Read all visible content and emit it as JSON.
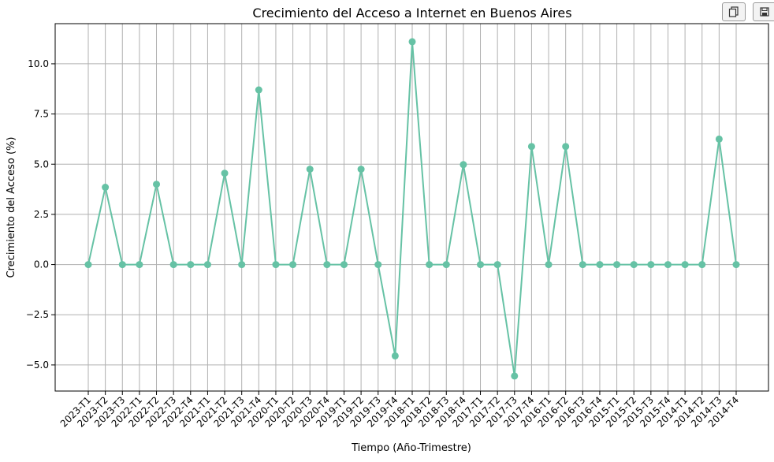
{
  "toolbar": {
    "copy_icon": "copy-icon",
    "save_icon": "save-icon"
  },
  "chart_data": {
    "type": "line",
    "title": "Crecimiento del Acceso a Internet en Buenos Aires",
    "xlabel": "Tiempo (Año-Trimestre)",
    "ylabel": "Crecimiento del Acceso (%)",
    "ylim": [
      -6.3,
      12.0
    ],
    "yticks": [
      -5.0,
      -2.5,
      0.0,
      2.5,
      5.0,
      7.5,
      10.0
    ],
    "ytick_labels": [
      "−5.0",
      "−2.5",
      "0.0",
      "2.5",
      "5.0",
      "7.5",
      "10.0"
    ],
    "grid": true,
    "color": "#66c2a5",
    "categories": [
      "2023-T1",
      "2023-T2",
      "2023-T3",
      "2022-T1",
      "2022-T2",
      "2022-T3",
      "2022-T4",
      "2021-T1",
      "2021-T2",
      "2021-T3",
      "2021-T4",
      "2020-T1",
      "2020-T2",
      "2020-T3",
      "2020-T4",
      "2019-T1",
      "2019-T2",
      "2019-T3",
      "2019-T4",
      "2018-T1",
      "2018-T2",
      "2018-T3",
      "2018-T4",
      "2017-T1",
      "2017-T2",
      "2017-T3",
      "2017-T4",
      "2016-T1",
      "2016-T2",
      "2016-T3",
      "2016-T4",
      "2015-T1",
      "2015-T2",
      "2015-T3",
      "2015-T4",
      "2014-T1",
      "2014-T2",
      "2014-T3",
      "2014-T4"
    ],
    "values": [
      0,
      3.85,
      0,
      0,
      4.0,
      0,
      0,
      0,
      4.55,
      0,
      8.7,
      0,
      0,
      4.75,
      0,
      0,
      4.75,
      0,
      -4.55,
      11.1,
      0,
      0,
      4.98,
      0,
      0,
      -5.55,
      5.88,
      0,
      5.88,
      0,
      0,
      0,
      0,
      0,
      0,
      0,
      0,
      6.25,
      0
    ]
  }
}
